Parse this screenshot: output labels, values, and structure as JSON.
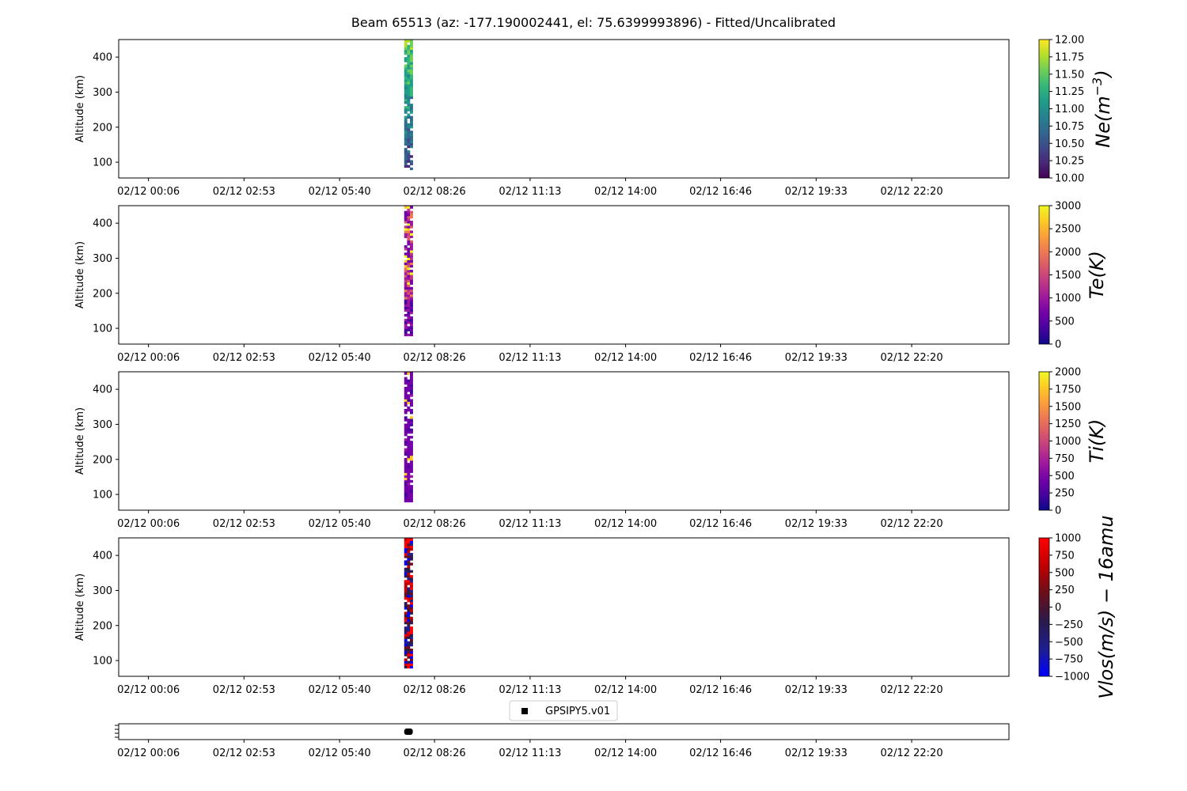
{
  "title": "Beam 65513 (az: -177.190002441, el: 75.6399993896) - Fitted/Uncalibrated",
  "x_tick_labels": [
    "02/12 00:06",
    "02/12 02:53",
    "02/12 05:40",
    "02/12 08:26",
    "02/12 11:13",
    "02/12 14:00",
    "02/12 16:46",
    "02/12 19:33",
    "02/12 22:20"
  ],
  "legend_label": "GPSIPY5.v01",
  "chart_data": [
    {
      "type": "heatmap",
      "ylabel": "Altitude (km)",
      "ylim": [
        55,
        450
      ],
      "yticks": [
        100,
        200,
        300,
        400
      ],
      "x_ticks_hours": [
        0.1,
        2.883,
        5.667,
        8.433,
        11.217,
        14.0,
        16.767,
        19.55,
        22.333
      ],
      "xlim_hours": [
        -0.767,
        25.167
      ],
      "data_time_range": [
        "02/12 07:33",
        "02/12 07:48"
      ],
      "altitude_range_km": [
        78,
        450
      ],
      "colorbar": {
        "label": "Ne(m^-3)",
        "range": [
          10.0,
          12.0
        ],
        "ticks": [
          "10.00",
          "10.25",
          "10.50",
          "10.75",
          "11.00",
          "11.25",
          "11.50",
          "11.75",
          "12.00"
        ],
        "colormap": "viridis"
      }
    },
    {
      "type": "heatmap",
      "ylabel": "Altitude (km)",
      "ylim": [
        55,
        450
      ],
      "yticks": [
        100,
        200,
        300,
        400
      ],
      "data_time_range": [
        "02/12 07:33",
        "02/12 07:48"
      ],
      "altitude_range_km": [
        78,
        450
      ],
      "colorbar": {
        "label": "Te(K)",
        "range": [
          0,
          3000
        ],
        "ticks": [
          "0",
          "500",
          "1000",
          "1500",
          "2000",
          "2500",
          "3000"
        ],
        "colormap": "plasma"
      }
    },
    {
      "type": "heatmap",
      "ylabel": "Altitude (km)",
      "ylim": [
        55,
        450
      ],
      "yticks": [
        100,
        200,
        300,
        400
      ],
      "data_time_range": [
        "02/12 07:33",
        "02/12 07:48"
      ],
      "altitude_range_km": [
        78,
        450
      ],
      "colorbar": {
        "label": "Ti(K)",
        "range": [
          0,
          2000
        ],
        "ticks": [
          "0",
          "250",
          "500",
          "750",
          "1000",
          "1250",
          "1500",
          "1750",
          "2000"
        ],
        "colormap": "plasma"
      }
    },
    {
      "type": "heatmap",
      "ylabel": "Altitude (km)",
      "ylim": [
        55,
        450
      ],
      "yticks": [
        100,
        200,
        300,
        400
      ],
      "data_time_range": [
        "02/12 07:33",
        "02/12 07:48"
      ],
      "altitude_range_km": [
        78,
        450
      ],
      "colorbar": {
        "label": "Vlos(m/s) − 16amu",
        "range": [
          -1000,
          1000
        ],
        "ticks": [
          "1000",
          "750",
          "500",
          "250",
          "0",
          "−250",
          "−500",
          "−750",
          "−1000"
        ],
        "colormap": "bwr-dark"
      }
    },
    {
      "type": "scatter",
      "series": [
        {
          "name": "GPSIPY5.v01",
          "x_range": [
            "02/12 07:33",
            "02/12 07:48"
          ]
        }
      ]
    }
  ],
  "colors": {
    "viridis": [
      "#440154",
      "#482878",
      "#3e4a89",
      "#31688e",
      "#26828e",
      "#1f9e89",
      "#35b779",
      "#6ece58",
      "#b5de2b",
      "#fde725"
    ],
    "plasma": [
      "#0d0887",
      "#46039f",
      "#7201a8",
      "#9c179e",
      "#bd3786",
      "#d8576b",
      "#ed7953",
      "#fb9f3a",
      "#fdca26",
      "#f0f921"
    ],
    "vlos": [
      "#0000ff",
      "#1e1e8f",
      "#2a1a4a",
      "#6a0f1a",
      "#c00000",
      "#ff0000"
    ]
  }
}
